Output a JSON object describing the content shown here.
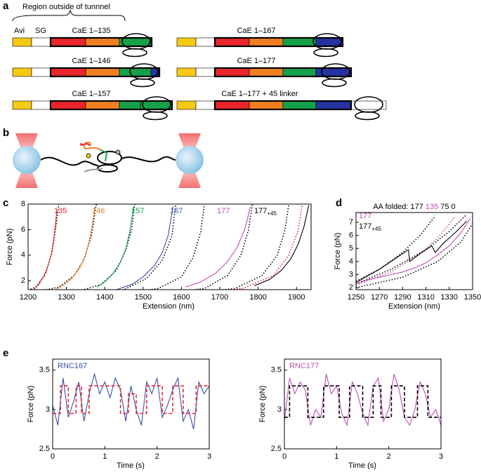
{
  "panel_labels": [
    "a",
    "b",
    "c",
    "d",
    "e"
  ],
  "constructs": {
    "region_label": "Region outside of tunnnel",
    "avi": "Avi",
    "sg": "SG",
    "items": [
      {
        "label": "CaE 1–135",
        "segments": [
          "#f6c915",
          "#ffffff",
          "#e8262b",
          "#f07f21",
          "#15a14a"
        ]
      },
      {
        "label": "CaE 1–146",
        "segments": [
          "#f6c915",
          "#ffffff",
          "#e8262b",
          "#f07f21",
          "#15a14a",
          "#2433a0"
        ]
      },
      {
        "label": "CaE 1–157",
        "segments": [
          "#f6c915",
          "#ffffff",
          "#e8262b",
          "#f07f21",
          "#15a14a",
          "#15a14a"
        ]
      },
      {
        "label": "CaE 1–167",
        "segments": [
          "#f6c915",
          "#ffffff",
          "#e8262b",
          "#f07f21",
          "#15a14a",
          "#2433a0"
        ]
      },
      {
        "label": "CaE 1–177",
        "segments": [
          "#f6c915",
          "#ffffff",
          "#e8262b",
          "#f07f21",
          "#15a14a",
          "#2433a0"
        ]
      },
      {
        "label": "CaE 1–177 + 45 linker",
        "segments": [
          "#f6c915",
          "#ffffff",
          "#e8262b",
          "#f07f21",
          "#15a14a",
          "#2433a0",
          "#ffffff"
        ]
      }
    ]
  },
  "chart_data": [
    {
      "type": "line",
      "xlabel": "Extension (nm)",
      "ylabel": "Force (pN)",
      "xlim": [
        1200,
        1938
      ],
      "xticks": [
        1200,
        1300,
        1400,
        1500,
        1600,
        1700,
        1800,
        1900
      ],
      "ylim": [
        1.3,
        8
      ],
      "yticks": [
        2,
        4,
        6,
        8
      ],
      "series": [
        {
          "color": "#000000",
          "style": "dotted",
          "x": [
            1200,
            1220,
            1245,
            1262,
            1274,
            1280
          ],
          "values": [
            1.25,
            1.5,
            2.5,
            4.2,
            6.5,
            8
          ]
        },
        {
          "color": "#000000",
          "style": "dotted",
          "x": [
            1240,
            1280,
            1320,
            1345,
            1365,
            1378
          ],
          "values": [
            1.25,
            1.5,
            2.4,
            3.6,
            5.5,
            8
          ]
        },
        {
          "color": "#000000",
          "style": "dotted",
          "x": [
            1340,
            1390,
            1430,
            1455,
            1470,
            1478
          ],
          "values": [
            1.25,
            1.7,
            2.8,
            4.4,
            6,
            8
          ]
        },
        {
          "color": "#000000",
          "style": "dotted",
          "x": [
            1380,
            1450,
            1510,
            1550,
            1575,
            1585
          ],
          "values": [
            1,
            1.3,
            2.2,
            3.6,
            5.5,
            8
          ]
        },
        {
          "color": "#000000",
          "style": "dotted",
          "x": [
            1450,
            1540,
            1600,
            1630,
            1650,
            1660
          ],
          "values": [
            1,
            1.4,
            2.3,
            3.8,
            5.8,
            8
          ]
        },
        {
          "color": "#000000",
          "style": "dotted",
          "x": [
            1560,
            1660,
            1720,
            1755,
            1775,
            1785
          ],
          "values": [
            1,
            1.4,
            2.4,
            4,
            6,
            8
          ]
        },
        {
          "color": "#000000",
          "style": "dotted",
          "x": [
            1620,
            1740,
            1810,
            1850,
            1870,
            1880
          ],
          "values": [
            1,
            1.4,
            2.4,
            4,
            6,
            8
          ]
        },
        {
          "color": "#e8262b",
          "style": "dotted",
          "x": [
            1620,
            1760,
            1840,
            1880,
            1905,
            1915
          ],
          "values": [
            1,
            1.4,
            2.4,
            4,
            6,
            8
          ]
        },
        {
          "name": "135",
          "color": "#e8262b",
          "x": [
            1215,
            1228,
            1240,
            1250,
            1260,
            1268,
            1275
          ],
          "values": [
            1.3,
            1.7,
            2.3,
            3,
            4,
            5.5,
            7.5
          ]
        },
        {
          "name": "146",
          "color": "#f07f21",
          "x": [
            1272,
            1295,
            1315,
            1335,
            1350,
            1362,
            1375
          ],
          "values": [
            1.3,
            1.7,
            2.2,
            3,
            4,
            5.4,
            7.8
          ]
        },
        {
          "name": "157",
          "color": "#15a14a",
          "x": [
            1380,
            1400,
            1420,
            1440,
            1455,
            1465,
            1475
          ],
          "values": [
            1.5,
            1.9,
            2.5,
            3.4,
            4.5,
            5.8,
            7.8
          ]
        },
        {
          "name": "167",
          "color": "#3a4fa8",
          "x": [
            1430,
            1470,
            1500,
            1530,
            1550,
            1565,
            1578
          ],
          "values": [
            1.3,
            1.7,
            2.3,
            3.2,
            4.2,
            5.5,
            7.8
          ]
        },
        {
          "name": "177",
          "color": "#c04fb0",
          "x": [
            1610,
            1650,
            1690,
            1720,
            1745,
            1765,
            1780
          ],
          "values": [
            1.5,
            1.9,
            2.6,
            3.5,
            4.6,
            6,
            7.8
          ]
        },
        {
          "name": "177",
          "name_subscript": "+45",
          "color": "#000000",
          "x": [
            1790,
            1830,
            1860,
            1885,
            1905,
            1920,
            1932
          ],
          "values": [
            1.6,
            2.1,
            2.8,
            3.7,
            4.9,
            6.3,
            7.9
          ]
        }
      ]
    },
    {
      "type": "line",
      "xlabel": "Extension (nm)",
      "ylabel": "Force (pN)",
      "annotation": [
        {
          "text": "AA folded: 177",
          "color": "#000000"
        },
        {
          "text": "135",
          "color": "#c04fb0"
        },
        {
          "text": "75 0",
          "color": "#000000"
        }
      ],
      "xlim": [
        1250,
        1350
      ],
      "xticks": [
        1250,
        1270,
        1290,
        1310,
        1330,
        1350
      ],
      "ylim": [
        1.85,
        7.75
      ],
      "yticks": [
        2,
        3,
        4,
        5,
        6,
        7
      ],
      "series": [
        {
          "color": "#000000",
          "style": "dotted",
          "x": [
            1250,
            1270,
            1290,
            1305,
            1318
          ],
          "values": [
            2.5,
            3.4,
            4.7,
            6,
            7.5
          ]
        },
        {
          "color": "#000000",
          "style": "dotted",
          "x": [
            1250,
            1280,
            1310,
            1330,
            1345
          ],
          "values": [
            2.3,
            3.4,
            4.9,
            6.3,
            7.6
          ]
        },
        {
          "color": "#c04fb0",
          "style": "dotted",
          "x": [
            1250,
            1280,
            1305,
            1320,
            1335
          ],
          "values": [
            2.2,
            3.2,
            4.6,
            5.8,
            7.4
          ]
        },
        {
          "color": "#000000",
          "style": "dotted",
          "x": [
            1250,
            1290,
            1320,
            1340,
            1350
          ],
          "values": [
            2,
            2.8,
            4,
            5.5,
            6.9
          ]
        },
        {
          "name": "177",
          "color": "#c04fb0",
          "x": [
            1250,
            1260,
            1270,
            1280,
            1290,
            1300,
            1310,
            1320,
            1330,
            1340,
            1348
          ],
          "values": [
            2.3,
            2.6,
            2.8,
            3,
            3.2,
            3.5,
            3.9,
            4.5,
            5.2,
            6.2,
            7.3
          ]
        },
        {
          "name": "177",
          "name_subscript": "+45",
          "color": "#000000",
          "x": [
            1250,
            1260,
            1270,
            1280,
            1290,
            1295,
            1296,
            1305,
            1315,
            1318,
            1325,
            1335,
            1345
          ],
          "values": [
            2.4,
            2.9,
            3.4,
            4,
            4.6,
            4.9,
            4,
            4.6,
            5.2,
            4.7,
            5.4,
            6.2,
            7.1
          ]
        }
      ]
    },
    {
      "type": "line",
      "xlabel": "Time (s)",
      "ylabel": "Force (pN)",
      "xlim": [
        0,
        3
      ],
      "xticks": [
        0,
        1,
        2,
        3
      ],
      "ylim": [
        2.5,
        3.64
      ],
      "yticks": [
        2.5,
        3,
        3.5
      ],
      "series": [
        {
          "name": "RNC167",
          "color": "#3a4fa8",
          "x": [
            0,
            0.1,
            0.2,
            0.3,
            0.4,
            0.5,
            0.6,
            0.7,
            0.8,
            0.9,
            1,
            1.1,
            1.2,
            1.3,
            1.4,
            1.5,
            1.6,
            1.7,
            1.8,
            1.9,
            2,
            2.1,
            2.2,
            2.3,
            2.4,
            2.5,
            2.6,
            2.7,
            2.8,
            2.9,
            3
          ],
          "values": [
            3.05,
            2.8,
            3.4,
            2.9,
            3.1,
            3.35,
            2.85,
            3.2,
            3.45,
            3.2,
            3.35,
            3.15,
            3.4,
            3.25,
            2.85,
            3.3,
            3,
            2.8,
            3.35,
            3.2,
            3.4,
            2.9,
            3.05,
            3.25,
            3.4,
            2.85,
            3,
            2.75,
            3.35,
            3.2,
            3.3
          ]
        },
        {
          "color": "#e8262b",
          "style": "dashed",
          "x": [
            0,
            0.15,
            0.15,
            0.3,
            0.3,
            0.45,
            0.45,
            0.55,
            0.55,
            0.7,
            0.7,
            1.3,
            1.3,
            1.45,
            1.45,
            1.6,
            1.6,
            1.8,
            1.8,
            2.1,
            2.1,
            2.3,
            2.3,
            2.5,
            2.5,
            2.75,
            2.75,
            3
          ],
          "values": [
            2.95,
            2.95,
            3.3,
            3.3,
            2.95,
            2.95,
            3.3,
            3.3,
            2.95,
            2.95,
            3.3,
            3.3,
            2.95,
            2.95,
            3.2,
            3.2,
            2.95,
            2.95,
            3.3,
            3.3,
            2.95,
            2.95,
            3.3,
            3.3,
            2.95,
            2.95,
            3.3,
            3.3
          ]
        }
      ]
    },
    {
      "type": "line",
      "xlabel": "Time (s)",
      "ylabel": "Force (pN)",
      "xlim": [
        0,
        3
      ],
      "xticks": [
        0,
        1,
        2,
        3
      ],
      "ylim": [
        2.5,
        3.64
      ],
      "yticks": [
        2.5,
        3,
        3.5
      ],
      "series": [
        {
          "name": "RNC177",
          "color": "#c04fb0",
          "x": [
            0,
            0.1,
            0.2,
            0.3,
            0.4,
            0.5,
            0.6,
            0.7,
            0.8,
            0.9,
            1,
            1.1,
            1.2,
            1.3,
            1.4,
            1.5,
            1.6,
            1.7,
            1.8,
            1.9,
            2,
            2.1,
            2.2,
            2.3,
            2.4,
            2.5,
            2.6,
            2.7,
            2.8,
            2.9,
            3
          ],
          "values": [
            2.85,
            3.4,
            3.2,
            3.35,
            3.25,
            2.8,
            3,
            2.9,
            3.45,
            3.2,
            3.3,
            2.95,
            2.8,
            3.35,
            3.2,
            2.95,
            2.8,
            3.3,
            3.4,
            2.85,
            3,
            3.45,
            3.25,
            2.9,
            2.8,
            3,
            3.35,
            3.2,
            2.9,
            3,
            2.8
          ]
        },
        {
          "color": "#000000",
          "style": "dashed",
          "x": [
            0,
            0.1,
            0.1,
            0.45,
            0.45,
            0.75,
            0.75,
            1.05,
            1.05,
            1.25,
            1.25,
            1.5,
            1.5,
            1.7,
            1.7,
            1.85,
            1.85,
            2.05,
            2.05,
            2.3,
            2.3,
            2.55,
            2.55,
            2.75,
            2.75,
            3
          ],
          "values": [
            2.9,
            2.9,
            3.3,
            3.3,
            2.9,
            2.9,
            3.3,
            3.3,
            2.9,
            2.9,
            3.3,
            3.3,
            2.9,
            2.9,
            3.3,
            3.3,
            2.9,
            2.9,
            3.3,
            3.3,
            2.9,
            2.9,
            3.3,
            3.3,
            2.9,
            2.9
          ]
        }
      ]
    }
  ]
}
